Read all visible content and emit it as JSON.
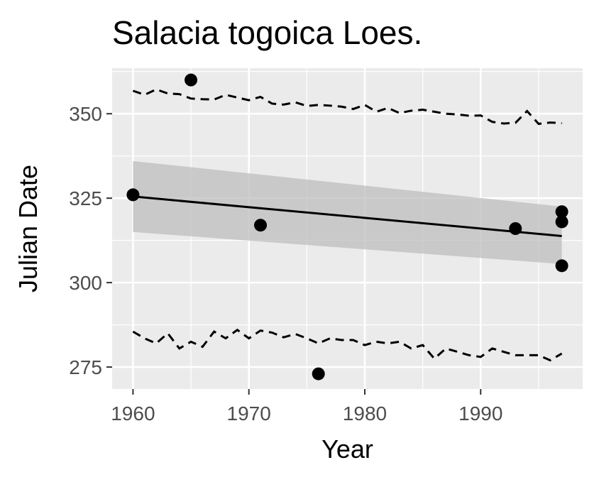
{
  "chart_data": {
    "type": "scatter",
    "title": "Salacia togoica Loes.",
    "xlabel": "Year",
    "ylabel": "Julian Date",
    "xlim": [
      1958.2,
      1998.8
    ],
    "ylim": [
      268.5,
      363.5
    ],
    "x_ticks": [
      1960,
      1970,
      1980,
      1990
    ],
    "y_ticks": [
      275,
      300,
      325,
      350
    ],
    "grid": true,
    "legend": "none",
    "colors": {
      "panel": "#ebebeb",
      "grid": "#ffffff",
      "points": "#000000",
      "ribbon": "#bdbdbd",
      "text": "#000000",
      "tick_text": "#4d4d4d"
    },
    "points": [
      {
        "x": 1960,
        "y": 326
      },
      {
        "x": 1965,
        "y": 360
      },
      {
        "x": 1971,
        "y": 317
      },
      {
        "x": 1976,
        "y": 273
      },
      {
        "x": 1993,
        "y": 316
      },
      {
        "x": 1997,
        "y": 321
      },
      {
        "x": 1997,
        "y": 318
      },
      {
        "x": 1997,
        "y": 305
      }
    ],
    "trend_line": {
      "x": [
        1960,
        1997
      ],
      "y": [
        325.5,
        313.8
      ]
    },
    "confidence_band": {
      "x": [
        1960,
        1997
      ],
      "upper": [
        336,
        322.5
      ],
      "lower": [
        315,
        305.5
      ]
    },
    "upper_dashed": {
      "x": [
        1960,
        1961,
        1962,
        1963,
        1964,
        1965,
        1966,
        1967,
        1968,
        1969,
        1970,
        1971,
        1972,
        1973,
        1974,
        1975,
        1976,
        1977,
        1978,
        1979,
        1980,
        1981,
        1982,
        1983,
        1984,
        1985,
        1986,
        1987,
        1988,
        1989,
        1990,
        1991,
        1992,
        1993,
        1994,
        1995,
        1996,
        1997
      ],
      "y": [
        356.8,
        355.6,
        357.2,
        356.0,
        355.8,
        354.5,
        354.3,
        354.2,
        355.6,
        354.8,
        354.0,
        355.0,
        353.0,
        352.7,
        353.4,
        352.3,
        352.6,
        352.4,
        352.1,
        351.4,
        352.6,
        350.6,
        351.7,
        350.2,
        350.9,
        351.2,
        350.6,
        350.0,
        349.8,
        349.4,
        349.5,
        347.6,
        347.1,
        347.3,
        350.8,
        347.0,
        347.4,
        347.2
      ]
    },
    "lower_dashed": {
      "x": [
        1960,
        1961,
        1962,
        1963,
        1964,
        1965,
        1966,
        1967,
        1968,
        1969,
        1970,
        1971,
        1972,
        1973,
        1974,
        1975,
        1976,
        1977,
        1978,
        1979,
        1980,
        1981,
        1982,
        1983,
        1984,
        1985,
        1986,
        1987,
        1988,
        1989,
        1990,
        1991,
        1992,
        1993,
        1994,
        1995,
        1996,
        1997
      ],
      "y": [
        285.5,
        283.5,
        282.0,
        285.0,
        280.5,
        282.5,
        281.0,
        285.5,
        283.5,
        286.0,
        283.5,
        285.8,
        285.2,
        283.8,
        284.8,
        283.5,
        282.0,
        283.5,
        283.0,
        283.0,
        281.5,
        282.5,
        282.0,
        282.5,
        280.5,
        281.5,
        277.5,
        280.5,
        279.5,
        278.5,
        278.0,
        280.5,
        279.5,
        278.5,
        278.5,
        278.5,
        277.0,
        279.0
      ]
    }
  }
}
